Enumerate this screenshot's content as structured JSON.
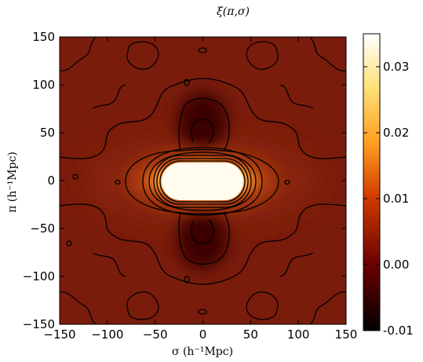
{
  "chart_data": {
    "type": "heatmap",
    "title": "ξ(π,σ)",
    "xlabel": "σ  (h⁻¹Mpc)",
    "ylabel": "π  (h⁻¹Mpc)",
    "xlim": [
      -150,
      150
    ],
    "ylim": [
      -150,
      150
    ],
    "x_ticks": [
      "−150",
      "−100",
      "−50",
      "0",
      "50",
      "100",
      "150"
    ],
    "x_tick_values": [
      -150,
      -100,
      -50,
      0,
      50,
      100,
      150
    ],
    "y_ticks": [
      "150",
      "100",
      "50",
      "0",
      "−50",
      "−100",
      "−150"
    ],
    "y_tick_values": [
      150,
      100,
      50,
      0,
      -50,
      -100,
      -150
    ],
    "colorbar": {
      "range": [
        -0.01,
        0.035
      ],
      "ticks": [
        "0.03",
        "0.02",
        "0.01",
        "0.00",
        "-0.01"
      ],
      "tick_values": [
        0.03,
        0.02,
        0.01,
        0.0,
        -0.01
      ],
      "colormap": "afmhot",
      "colors": [
        "#000000",
        "#6a0000",
        "#d13a00",
        "#ff9d1f",
        "#ffe17a",
        "#ffffff"
      ]
    },
    "grid": false,
    "legend": "none",
    "background_value": 0.0
  }
}
